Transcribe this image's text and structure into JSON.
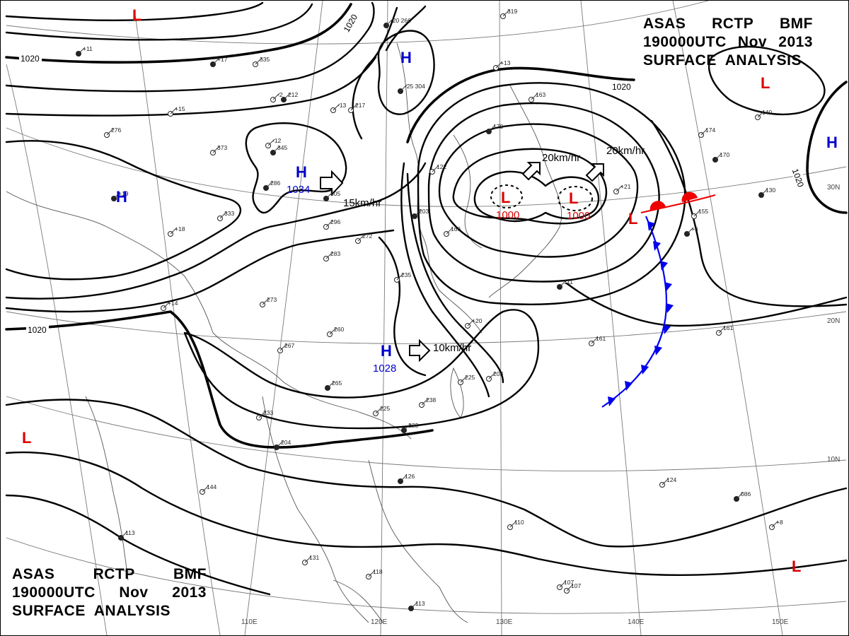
{
  "title": {
    "line1": [
      "ASAS",
      "RCTP",
      "BMF"
    ],
    "line2": [
      "190000UTC",
      "Nov",
      "2013"
    ],
    "line3": "SURFACE  ANALYSIS"
  },
  "pressure_centers": [
    {
      "type": "H",
      "value": "1034",
      "color": "#0000cc"
    },
    {
      "type": "H",
      "value": "1028",
      "color": "#0000cc"
    },
    {
      "type": "H",
      "value": "",
      "color": "#0000cc"
    },
    {
      "type": "H",
      "value": "",
      "color": "#0000cc"
    },
    {
      "type": "H",
      "value": "",
      "color": "#0000cc"
    },
    {
      "type": "L",
      "value": "1000",
      "color": "#dd0000"
    },
    {
      "type": "L",
      "value": "1000",
      "color": "#dd0000"
    },
    {
      "type": "L",
      "value": "",
      "color": "#dd0000"
    },
    {
      "type": "L",
      "value": "",
      "color": "#dd0000"
    },
    {
      "type": "L",
      "value": "",
      "color": "#dd0000"
    },
    {
      "type": "L",
      "value": "",
      "color": "#dd0000"
    },
    {
      "type": "L",
      "value": "",
      "color": "#dd0000"
    }
  ],
  "isobar_labels": [
    "1020",
    "1020",
    "1020",
    "1020",
    "1020"
  ],
  "motion_labels": [
    "15km/hr",
    "10km/hr",
    "20km/hr",
    "20km/hr"
  ],
  "longitude_labels": [
    "110E",
    "120E",
    "130E",
    "140E",
    "150E"
  ],
  "latitude_labels": [
    "30N",
    "20N",
    "10N"
  ],
  "station_texts": [
    "-20 266",
    "319",
    "373",
    "345",
    "-12",
    "-13",
    "-25 304",
    "217",
    "-2",
    "212",
    "335",
    "276",
    "286",
    "333",
    "296",
    "305",
    "272",
    "283",
    "203",
    "273",
    "233",
    "204",
    "260",
    "267",
    "265",
    "225",
    "238",
    "223",
    "235",
    "163",
    "179",
    "122",
    "166",
    "111",
    "161",
    "174",
    "170",
    "140",
    "155",
    "130",
    "161",
    "124",
    "086",
    "107",
    "110",
    "126",
    "131",
    "118",
    "113",
    "107",
    "144",
    "113",
    "225",
    "203",
    "+17",
    "+15",
    "+20",
    "+11",
    "+14",
    "+13",
    "+19",
    "+18",
    "+21",
    "+6",
    "+8"
  ],
  "colors": {
    "high": "#0000cc",
    "low": "#dd0000",
    "cold_front": "#0000ee",
    "warm_front": "#ee0000"
  }
}
